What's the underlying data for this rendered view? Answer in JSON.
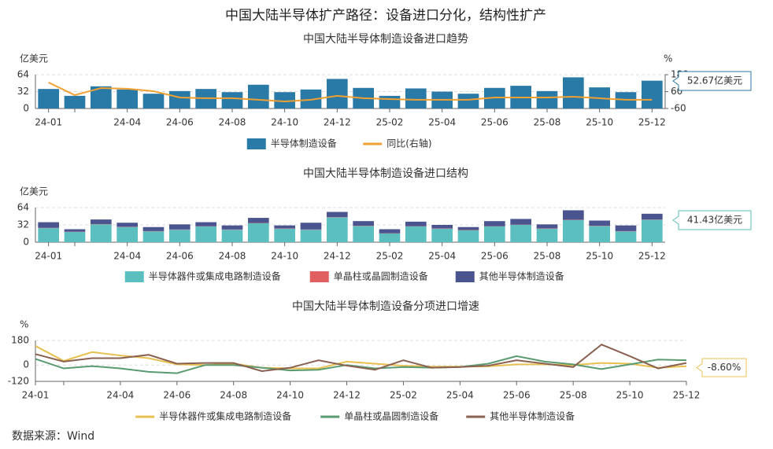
{
  "title": "中国大陆半导体扩产路径：设备进口分化，结构性扩产",
  "source": "数据来源：Wind",
  "chart_data": [
    {
      "type": "bar_line",
      "title": "中国大陆半导体制造设备进口趋势",
      "y_label": "亿美元",
      "y2_label": "%",
      "categories": [
        "24-01",
        null,
        null,
        "24-04",
        null,
        "24-06",
        null,
        "24-08",
        null,
        "24-10",
        null,
        "24-12",
        null,
        "25-02",
        null,
        "25-04",
        null,
        "25-06",
        null,
        "25-08",
        null,
        "25-10",
        null,
        "25-12"
      ],
      "series": [
        {
          "name": "半导体制造设备",
          "color": "#2a7aa8",
          "values": [
            37,
            24,
            42,
            36,
            28,
            33,
            37,
            31,
            45,
            31,
            36,
            56,
            39,
            24,
            38,
            32,
            28,
            39,
            43,
            33,
            59,
            40,
            31,
            52.67
          ]
        },
        {
          "name": "同比(右轴)",
          "color": "#f0a030",
          "axis": "y2",
          "values": [
            125,
            35,
            85,
            80,
            63,
            18,
            13,
            13,
            2,
            -10,
            2,
            30,
            13,
            7,
            2,
            2,
            2,
            18,
            18,
            18,
            24,
            13,
            2,
            2
          ]
        }
      ],
      "annotation": "52.67亿美元",
      "ylim": [
        0,
        64
      ],
      "yticks": [
        0,
        32,
        64
      ],
      "y2lim": [
        -60,
        180
      ],
      "y2ticks": [
        -60,
        60,
        180
      ],
      "grid": true
    },
    {
      "type": "stacked_bar",
      "title": "中国大陆半导体制造设备进口结构",
      "y_label": "亿美元",
      "categories": [
        "24-01",
        null,
        null,
        "24-04",
        null,
        "24-06",
        null,
        "24-08",
        null,
        "24-10",
        null,
        "24-12",
        null,
        "25-02",
        null,
        "25-04",
        null,
        "25-06",
        null,
        "25-08",
        null,
        "25-10",
        null,
        "25-12"
      ],
      "series": [
        {
          "name": "半导体器件或集成电路制造设备",
          "color": "#5bbfbf",
          "values": [
            26,
            19,
            33,
            28,
            20,
            23,
            29,
            23,
            35,
            25,
            23,
            46,
            30,
            16,
            29,
            25,
            22,
            29,
            32,
            25,
            41,
            30,
            20,
            41.43
          ]
        },
        {
          "name": "单晶柱或晶圆制造设备",
          "color": "#e06060",
          "values": [
            0.5,
            0.5,
            0.5,
            0.5,
            0.5,
            0.5,
            0.5,
            0.5,
            0.5,
            0.5,
            0.5,
            0.5,
            0.5,
            0.5,
            0.5,
            0.5,
            0.5,
            0.5,
            0.5,
            0.5,
            0.5,
            0.5,
            0.5,
            0.5
          ]
        },
        {
          "name": "其他半导体制造设备",
          "color": "#4a5590",
          "values": [
            10.5,
            4.5,
            8.5,
            7.5,
            7.5,
            9.5,
            7.5,
            7.5,
            9.5,
            5.5,
            12.5,
            9.5,
            8.5,
            7.5,
            8.5,
            6.5,
            5.5,
            9.5,
            10.5,
            7.5,
            17.5,
            9.5,
            10.5,
            10.7
          ]
        }
      ],
      "annotation": "41.43亿美元",
      "ylim": [
        0,
        64
      ],
      "yticks": [
        0,
        32,
        64
      ],
      "grid": true
    },
    {
      "type": "line",
      "title": "中国大陆半导体制造设备分项进口增速",
      "y_label": "%",
      "categories": [
        "24-01",
        null,
        null,
        "24-04",
        null,
        "24-06",
        null,
        "24-08",
        null,
        "24-10",
        null,
        "24-12",
        null,
        "25-02",
        null,
        "25-04",
        null,
        "25-06",
        null,
        "25-08",
        null,
        "25-10",
        null,
        "25-12"
      ],
      "series": [
        {
          "name": "半导体器件或集成电路制造设备",
          "color": "#e8c050",
          "values": [
            140,
            30,
            95,
            70,
            50,
            5,
            0,
            10,
            -20,
            -25,
            -25,
            25,
            10,
            -5,
            -12,
            -12,
            -10,
            5,
            5,
            0,
            15,
            10,
            -20,
            -8.6
          ]
        },
        {
          "name": "单晶柱或晶圆制造设备",
          "color": "#5a9a70",
          "values": [
            45,
            -25,
            -8,
            -25,
            -50,
            -60,
            0,
            0,
            -20,
            -40,
            -35,
            0,
            -25,
            -15,
            -20,
            -15,
            10,
            65,
            25,
            5,
            -30,
            5,
            40,
            35
          ]
        },
        {
          "name": "其他半导体制造设备",
          "color": "#8a6050",
          "values": [
            80,
            25,
            50,
            50,
            75,
            10,
            15,
            15,
            -45,
            -20,
            35,
            -5,
            -35,
            35,
            -20,
            -15,
            -5,
            35,
            10,
            -15,
            150,
            65,
            -25,
            15
          ]
        }
      ],
      "annotation": "-8.60%",
      "ylim": [
        -120,
        180
      ],
      "yticks": [
        -120,
        0,
        180
      ],
      "grid": true
    }
  ]
}
